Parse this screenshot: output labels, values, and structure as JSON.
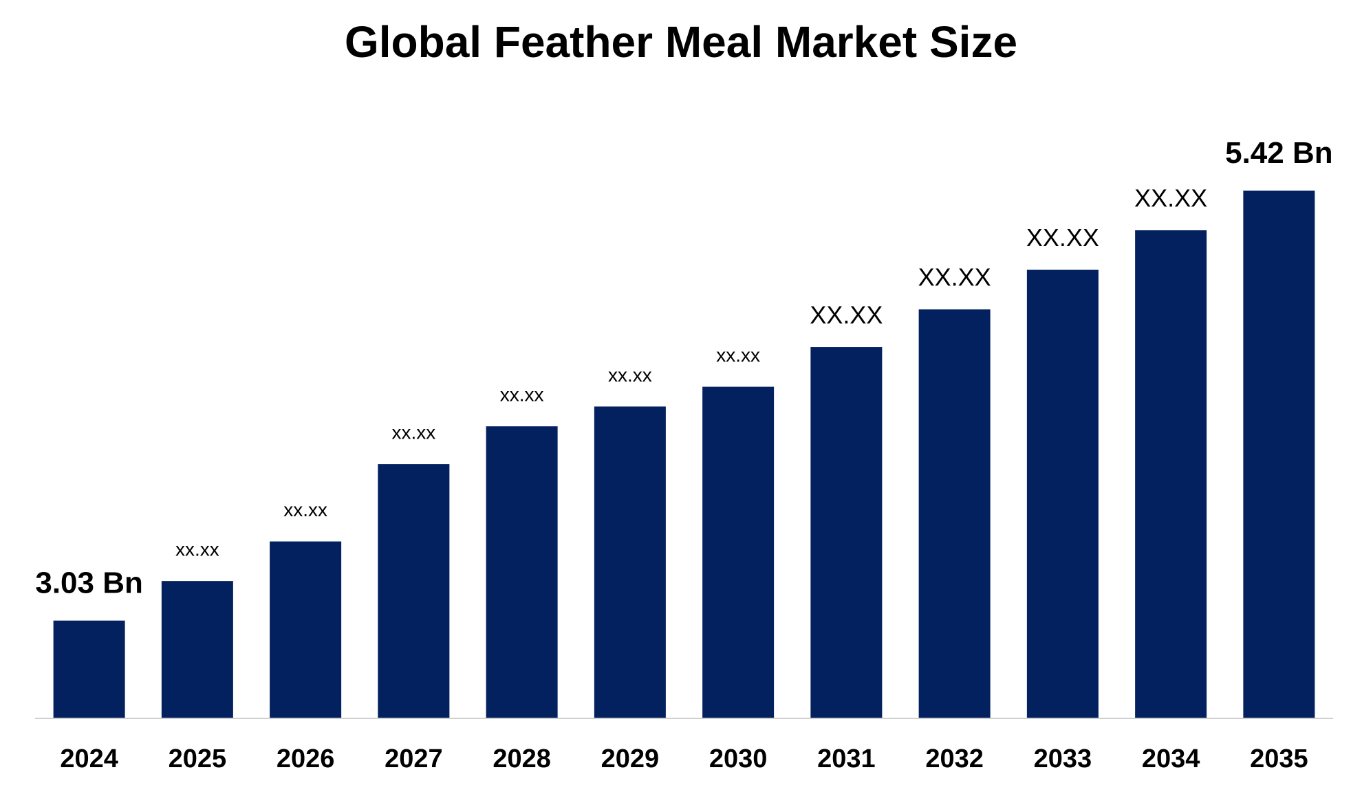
{
  "chart_data": {
    "type": "bar",
    "title": "Global Feather Meal Market Size",
    "categories": [
      "2024",
      "2025",
      "2026",
      "2027",
      "2028",
      "2029",
      "2030",
      "2031",
      "2032",
      "2033",
      "2034",
      "2035"
    ],
    "values": [
      3.03,
      3.25,
      3.47,
      3.9,
      4.11,
      4.22,
      4.33,
      4.55,
      4.76,
      4.98,
      5.2,
      5.42
    ],
    "value_labels": [
      "3.03 Bn",
      "xx.xx",
      "xx.xx",
      "xx.xx",
      "xx.xx",
      "xx.xx",
      "xx.xx",
      "XX.XX",
      "XX.XX",
      "XX.XX",
      "XX.XX",
      "5.42 Bn"
    ],
    "color": "#03215f",
    "ylim": [
      2.49,
      5.8
    ]
  }
}
